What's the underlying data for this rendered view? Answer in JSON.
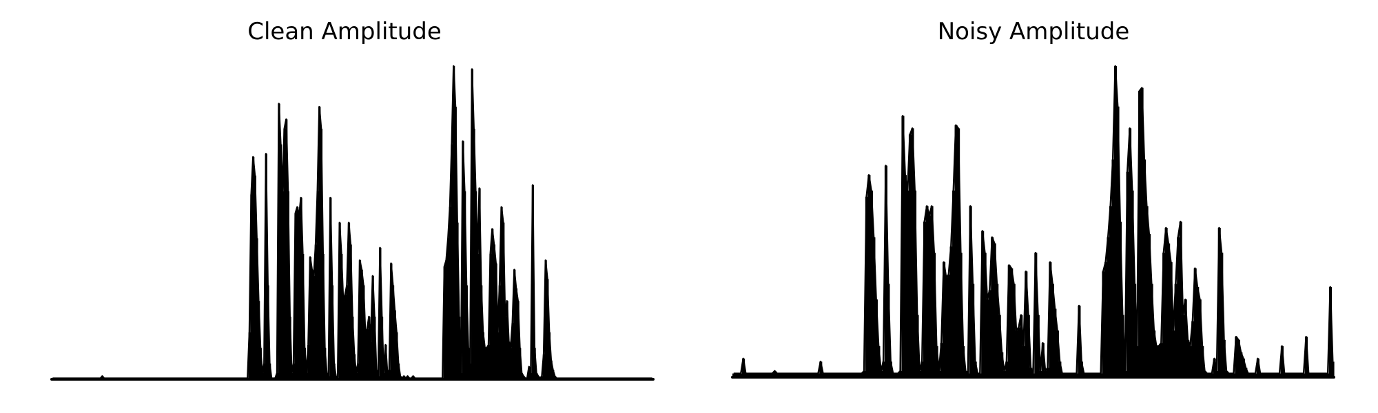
{
  "colors": {
    "line": "#000000",
    "background": "#ffffff"
  },
  "chart_data": [
    {
      "type": "area",
      "title": "Clean Amplitude",
      "axes_visible": false,
      "grid": false,
      "ylim": [
        0,
        1
      ],
      "noise_floor": 0.003,
      "series": [
        {
          "values": [
            0.0,
            0.0,
            0.0,
            0.0,
            0.0,
            0.0,
            0.0,
            0.0,
            0.0,
            0.0,
            0.0,
            0.0,
            0.0,
            0.0,
            0.0,
            0.0,
            0.0,
            0.0,
            0.0,
            0.0,
            0.0,
            0.0,
            0.0,
            0.0,
            0.0,
            0.0,
            0.0,
            0.01,
            0.0,
            0.0,
            0.0,
            0.0,
            0.0,
            0.0,
            0.0,
            0.0,
            0.0,
            0.0,
            0.0,
            0.0,
            0.0,
            0.0,
            0.0,
            0.0,
            0.0,
            0.0,
            0.0,
            0.0,
            0.0,
            0.0,
            0.0,
            0.0,
            0.0,
            0.0,
            0.0,
            0.0,
            0.0,
            0.0,
            0.0,
            0.0,
            0.0,
            0.0,
            0.0,
            0.0,
            0.0,
            0.0,
            0.0,
            0.0,
            0.0,
            0.0,
            0.0,
            0.0,
            0.0,
            0.0,
            0.0,
            0.0,
            0.0,
            0.0,
            0.0,
            0.0,
            0.0,
            0.0,
            0.0,
            0.0,
            0.0,
            0.0,
            0.0,
            0.0,
            0.0,
            0.0,
            0.0,
            0.0,
            0.0,
            0.0,
            0.0,
            0.0,
            0.0,
            0.0,
            0.0,
            0.0,
            0.0,
            0.0,
            0.0,
            0.0,
            0.0,
            0.0,
            0.0,
            0.15,
            0.59,
            0.71,
            0.65,
            0.45,
            0.25,
            0.1,
            0.02,
            0.05,
            0.72,
            0.3,
            0.05,
            0.0,
            0.0,
            0.0,
            0.02,
            0.88,
            0.75,
            0.6,
            0.8,
            0.83,
            0.6,
            0.2,
            0.02,
            0.05,
            0.53,
            0.55,
            0.52,
            0.58,
            0.4,
            0.1,
            0.02,
            0.11,
            0.39,
            0.35,
            0.33,
            0.43,
            0.6,
            0.87,
            0.8,
            0.4,
            0.1,
            0.02,
            0.01,
            0.58,
            0.3,
            0.05,
            0.01,
            0.0,
            0.5,
            0.4,
            0.25,
            0.27,
            0.3,
            0.5,
            0.43,
            0.2,
            0.08,
            0.02,
            0.05,
            0.38,
            0.35,
            0.3,
            0.15,
            0.16,
            0.2,
            0.12,
            0.33,
            0.2,
            0.03,
            0.01,
            0.42,
            0.2,
            0.02,
            0.11,
            0.02,
            0.03,
            0.37,
            0.3,
            0.22,
            0.15,
            0.05,
            0.01,
            0.0,
            0.01,
            0.0,
            0.01,
            0.0,
            0.0,
            0.01,
            0.0,
            0.0,
            0.0,
            0.0,
            0.0,
            0.0,
            0.0,
            0.0,
            0.0,
            0.0,
            0.0,
            0.0,
            0.0,
            0.0,
            0.0,
            0.0,
            0.36,
            0.38,
            0.45,
            0.55,
            0.75,
            1.0,
            0.87,
            0.5,
            0.2,
            0.02,
            0.76,
            0.6,
            0.3,
            0.1,
            0.05,
            0.99,
            0.8,
            0.6,
            0.4,
            0.61,
            0.3,
            0.15,
            0.1,
            0.1,
            0.11,
            0.4,
            0.48,
            0.43,
            0.37,
            0.15,
            0.3,
            0.55,
            0.5,
            0.2,
            0.25,
            0.12,
            0.1,
            0.18,
            0.35,
            0.29,
            0.25,
            0.1,
            0.02,
            0.01,
            0.0,
            0.0,
            0.04,
            0.02,
            0.62,
            0.1,
            0.02,
            0.01,
            0.0,
            0.01,
            0.08,
            0.38,
            0.32,
            0.15,
            0.06,
            0.03,
            0.01,
            0.0,
            0.0,
            0.0,
            0.0,
            0.0,
            0.0,
            0.0,
            0.0,
            0.0,
            0.0,
            0.0,
            0.0,
            0.0,
            0.0,
            0.0,
            0.0,
            0.0,
            0.0,
            0.0,
            0.0,
            0.0,
            0.0,
            0.0,
            0.0,
            0.0,
            0.0,
            0.0,
            0.0,
            0.0,
            0.0,
            0.0,
            0.0,
            0.0,
            0.0,
            0.0,
            0.0,
            0.0,
            0.0,
            0.0,
            0.0,
            0.0,
            0.0,
            0.0,
            0.0,
            0.0,
            0.0,
            0.0,
            0.0,
            0.0,
            0.0,
            0.0,
            0.0,
            0.0
          ]
        }
      ]
    },
    {
      "type": "area",
      "title": "Noisy Amplitude",
      "axes_visible": false,
      "grid": false,
      "ylim": [
        0,
        1
      ],
      "noise_floor": 0.012,
      "series": [
        {
          "values": [
            0.0,
            0.0,
            0.0,
            0.0,
            0.06,
            0.0,
            0.0,
            0.0,
            0.0,
            0.0,
            0.0,
            0.0,
            0.0,
            0.0,
            0.0,
            0.0,
            0.0,
            0.02,
            0.0,
            0.0,
            0.0,
            0.0,
            0.0,
            0.0,
            0.0,
            0.0,
            0.0,
            0.0,
            0.0,
            0.0,
            0.0,
            0.0,
            0.0,
            0.0,
            0.0,
            0.0,
            0.05,
            0.0,
            0.0,
            0.0,
            0.0,
            0.0,
            0.0,
            0.0,
            0.0,
            0.0,
            0.0,
            0.0,
            0.0,
            0.0,
            0.0,
            0.0,
            0.0,
            0.0,
            0.02,
            0.58,
            0.65,
            0.6,
            0.45,
            0.25,
            0.1,
            0.02,
            0.05,
            0.68,
            0.3,
            0.05,
            0.0,
            0.0,
            0.0,
            0.02,
            0.84,
            0.65,
            0.6,
            0.78,
            0.8,
            0.6,
            0.2,
            0.02,
            0.05,
            0.5,
            0.55,
            0.52,
            0.55,
            0.4,
            0.1,
            0.02,
            0.11,
            0.37,
            0.32,
            0.33,
            0.42,
            0.6,
            0.81,
            0.8,
            0.4,
            0.1,
            0.02,
            0.01,
            0.55,
            0.3,
            0.05,
            0.01,
            0.0,
            0.47,
            0.4,
            0.25,
            0.28,
            0.45,
            0.43,
            0.3,
            0.2,
            0.08,
            0.02,
            0.05,
            0.36,
            0.35,
            0.3,
            0.15,
            0.16,
            0.2,
            0.1,
            0.34,
            0.2,
            0.03,
            0.01,
            0.4,
            0.2,
            0.02,
            0.11,
            0.02,
            0.03,
            0.37,
            0.3,
            0.22,
            0.15,
            0.05,
            0.01,
            0.0,
            0.0,
            0.0,
            0.01,
            0.0,
            0.0,
            0.23,
            0.05,
            0.01,
            0.0,
            0.0,
            0.0,
            0.0,
            0.0,
            0.0,
            0.0,
            0.34,
            0.37,
            0.45,
            0.55,
            0.7,
            1.0,
            0.87,
            0.5,
            0.2,
            0.02,
            0.66,
            0.8,
            0.6,
            0.3,
            0.1,
            0.92,
            0.93,
            0.7,
            0.55,
            0.46,
            0.3,
            0.15,
            0.1,
            0.1,
            0.11,
            0.4,
            0.48,
            0.43,
            0.37,
            0.15,
            0.3,
            0.45,
            0.5,
            0.2,
            0.25,
            0.12,
            0.1,
            0.18,
            0.35,
            0.29,
            0.25,
            0.1,
            0.02,
            0.01,
            0.0,
            0.0,
            0.06,
            0.02,
            0.48,
            0.4,
            0.12,
            0.02,
            0.01,
            0.0,
            0.01,
            0.13,
            0.12,
            0.08,
            0.06,
            0.03,
            0.01,
            0.0,
            0.0,
            0.0,
            0.06,
            0.0,
            0.0,
            0.0,
            0.0,
            0.0,
            0.0,
            0.0,
            0.0,
            0.0,
            0.1,
            0.0,
            0.0,
            0.0,
            0.0,
            0.0,
            0.0,
            0.0,
            0.0,
            0.0,
            0.13,
            0.0,
            0.0,
            0.0,
            0.0,
            0.0,
            0.0,
            0.0,
            0.0,
            0.0,
            0.29,
            0.05
          ]
        }
      ]
    }
  ]
}
